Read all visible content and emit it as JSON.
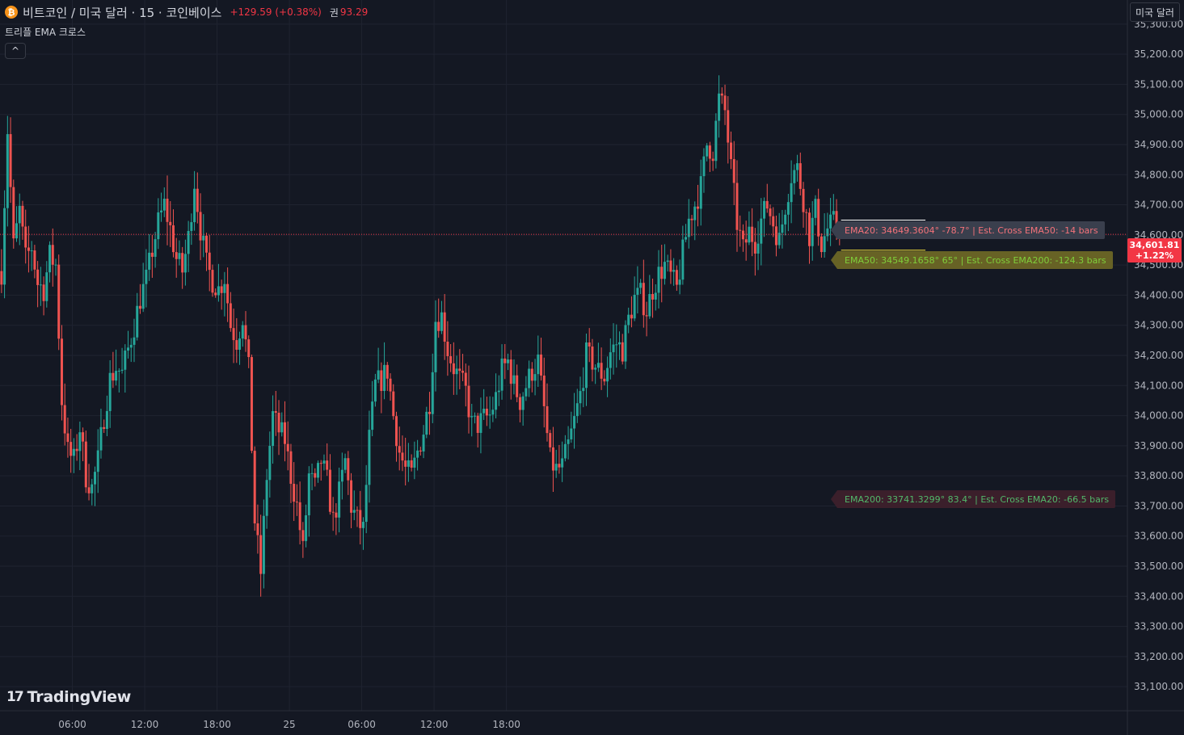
{
  "header": {
    "coin_icon": "bitcoin-icon",
    "title": "비트코인 / 미국 달러 · 15 · 코인베이스",
    "change": "+129.59 (+0.38%)",
    "volume_label": "권",
    "volume": "93.29"
  },
  "indicator": {
    "name": "트리플 EMA 크로스",
    "collapse_icon": "^"
  },
  "currency_button": "미국 달러",
  "last_price": {
    "value": "34,601.81",
    "change_pct": "+1.22%"
  },
  "ema_tags": {
    "ema20": "EMA20: 34649.3604° -78.7° | Est. Cross EMA50: -14 bars",
    "ema50": "EMA50: 34549.1658° 65° | Est. Cross EMA200: -124.3 bars",
    "ema200": "EMA200: 33741.3299° 83.4° | Est. Cross EMA20: -66.5 bars"
  },
  "branding": {
    "logo_mark": "17",
    "logo_text": "TradingView"
  },
  "colors": {
    "background": "#141823",
    "grid": "#1f2330",
    "up": "#26a69a",
    "down": "#ef5350",
    "ema20": "#ffffff",
    "ema50": "#ffeb3b",
    "ema200": "#e91e63",
    "price_line": "#f23645"
  },
  "chart_data": {
    "type": "candlestick",
    "interval": "15",
    "y_axis": {
      "ticks": [
        33100,
        33200,
        33300,
        33400,
        33500,
        33600,
        33700,
        33800,
        33900,
        34000,
        34100,
        34200,
        34300,
        34400,
        34500,
        34600,
        34700,
        34800,
        34900,
        35000,
        35100,
        35200,
        35300
      ],
      "tick_labels": [
        "33,100.00",
        "33,200.00",
        "33,300.00",
        "33,400.00",
        "33,500.00",
        "33,600.00",
        "33,700.00",
        "33,800.00",
        "33,900.00",
        "34,000.00",
        "34,100.00",
        "34,200.00",
        "34,300.00",
        "34,400.00",
        "34,500.00",
        "34,600.00",
        "34,700.00",
        "34,800.00",
        "34,900.00",
        "35,000.00",
        "35,100.00",
        "35,200.00",
        "35,300.00"
      ],
      "range": [
        33020,
        35380
      ]
    },
    "x_axis": {
      "ticks": [
        24,
        48,
        72,
        96,
        120,
        144,
        168
      ],
      "tick_labels": [
        "06:00",
        "12:00",
        "18:00",
        "25",
        "06:00",
        "12:00",
        "18:00"
      ],
      "range": [
        0,
        374
      ]
    },
    "current_price": 34601.81,
    "ema_levels": {
      "ema20": 34649.3604,
      "ema50": 34549.1658,
      "ema200": 33741.3299
    },
    "path": [
      [
        0,
        34480
      ],
      [
        2,
        34950
      ],
      [
        4,
        34560
      ],
      [
        6,
        34680
      ],
      [
        8,
        34520
      ],
      [
        10,
        34560
      ],
      [
        12,
        34440
      ],
      [
        14,
        34420
      ],
      [
        16,
        34530
      ],
      [
        18,
        34500
      ],
      [
        20,
        34050
      ],
      [
        22,
        33880
      ],
      [
        24,
        33850
      ],
      [
        26,
        33960
      ],
      [
        28,
        33800
      ],
      [
        30,
        33760
      ],
      [
        32,
        33850
      ],
      [
        34,
        34000
      ],
      [
        36,
        34120
      ],
      [
        38,
        34160
      ],
      [
        40,
        34140
      ],
      [
        42,
        34220
      ],
      [
        44,
        34300
      ],
      [
        46,
        34390
      ],
      [
        48,
        34450
      ],
      [
        50,
        34550
      ],
      [
        52,
        34640
      ],
      [
        54,
        34700
      ],
      [
        56,
        34620
      ],
      [
        58,
        34520
      ],
      [
        60,
        34480
      ],
      [
        62,
        34590
      ],
      [
        64,
        34780
      ],
      [
        66,
        34620
      ],
      [
        68,
        34500
      ],
      [
        70,
        34450
      ],
      [
        72,
        34420
      ],
      [
        74,
        34460
      ],
      [
        76,
        34300
      ],
      [
        78,
        34250
      ],
      [
        80,
        34330
      ],
      [
        82,
        34150
      ],
      [
        84,
        33650
      ],
      [
        86,
        33480
      ],
      [
        88,
        33800
      ],
      [
        90,
        34000
      ],
      [
        92,
        33950
      ],
      [
        94,
        33920
      ],
      [
        96,
        33800
      ],
      [
        98,
        33700
      ],
      [
        100,
        33550
      ],
      [
        102,
        33800
      ],
      [
        104,
        33760
      ],
      [
        106,
        33850
      ],
      [
        108,
        33780
      ],
      [
        110,
        33650
      ],
      [
        112,
        33740
      ],
      [
        114,
        33850
      ],
      [
        116,
        33700
      ],
      [
        118,
        33650
      ],
      [
        120,
        33620
      ],
      [
        122,
        33920
      ],
      [
        124,
        34100
      ],
      [
        126,
        34120
      ],
      [
        128,
        34150
      ],
      [
        130,
        34000
      ],
      [
        132,
        33880
      ],
      [
        134,
        33820
      ],
      [
        136,
        33800
      ],
      [
        138,
        33880
      ],
      [
        140,
        33950
      ],
      [
        142,
        34050
      ],
      [
        144,
        34320
      ],
      [
        146,
        34330
      ],
      [
        148,
        34220
      ],
      [
        150,
        34160
      ],
      [
        152,
        34120
      ],
      [
        154,
        34080
      ],
      [
        156,
        33970
      ],
      [
        158,
        33970
      ],
      [
        160,
        33990
      ],
      [
        162,
        34000
      ],
      [
        164,
        34060
      ],
      [
        166,
        34150
      ],
      [
        168,
        34180
      ],
      [
        170,
        34100
      ],
      [
        172,
        34050
      ],
      [
        174,
        34100
      ],
      [
        176,
        34150
      ],
      [
        178,
        34180
      ],
      [
        180,
        34020
      ],
      [
        182,
        33850
      ],
      [
        184,
        33820
      ],
      [
        186,
        33830
      ],
      [
        188,
        33900
      ],
      [
        190,
        33980
      ],
      [
        192,
        34070
      ],
      [
        194,
        34200
      ],
      [
        196,
        34180
      ],
      [
        198,
        34150
      ],
      [
        200,
        34130
      ],
      [
        202,
        34210
      ],
      [
        204,
        34240
      ],
      [
        206,
        34220
      ],
      [
        208,
        34320
      ],
      [
        210,
        34390
      ],
      [
        212,
        34400
      ],
      [
        214,
        34350
      ],
      [
        216,
        34420
      ],
      [
        218,
        34470
      ],
      [
        220,
        34500
      ],
      [
        222,
        34460
      ],
      [
        224,
        34420
      ],
      [
        226,
        34540
      ],
      [
        228,
        34650
      ],
      [
        230,
        34700
      ],
      [
        232,
        34760
      ],
      [
        234,
        34900
      ],
      [
        236,
        34880
      ],
      [
        238,
        35050
      ],
      [
        240,
        35010
      ],
      [
        242,
        34820
      ],
      [
        244,
        34640
      ],
      [
        246,
        34550
      ],
      [
        248,
        34610
      ],
      [
        250,
        34580
      ],
      [
        252,
        34650
      ],
      [
        254,
        34700
      ],
      [
        256,
        34640
      ],
      [
        258,
        34580
      ],
      [
        260,
        34700
      ],
      [
        262,
        34800
      ],
      [
        264,
        34820
      ],
      [
        266,
        34720
      ],
      [
        268,
        34600
      ],
      [
        270,
        34680
      ],
      [
        272,
        34570
      ],
      [
        274,
        34620
      ],
      [
        276,
        34640
      ],
      [
        278,
        34601.81
      ]
    ]
  }
}
